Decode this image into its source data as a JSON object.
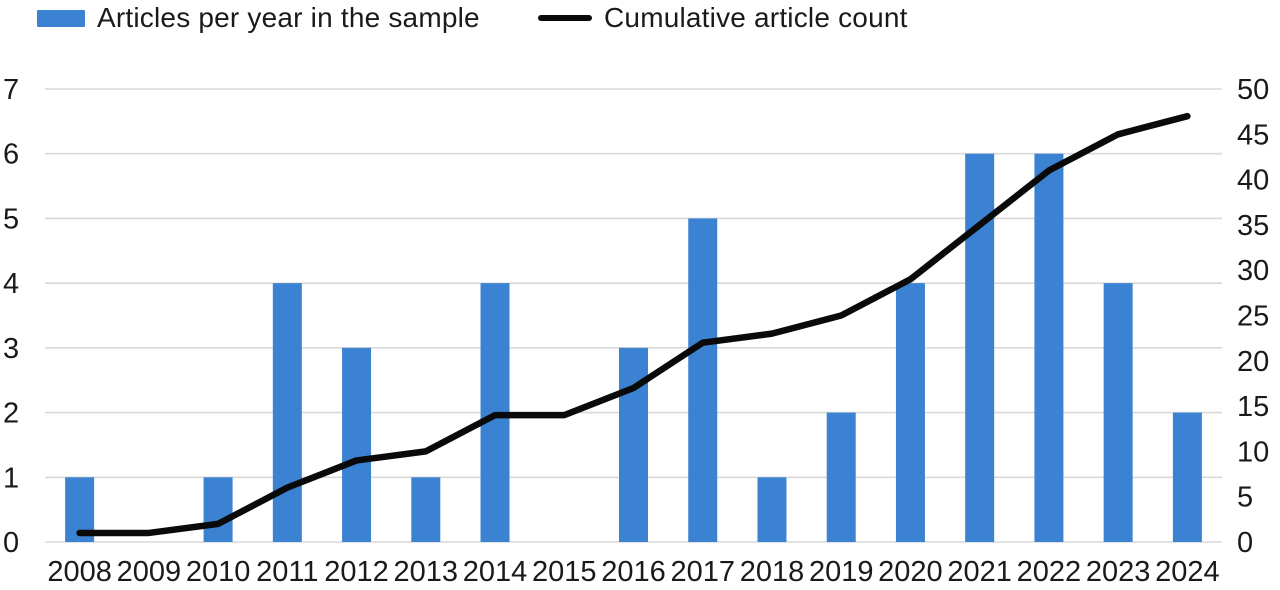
{
  "legend": {
    "items": [
      {
        "label": "Articles per year in the sample",
        "marker": "bar-swatch",
        "color": "#3B82D3"
      },
      {
        "label": "Cumulative article count",
        "marker": "line-swatch",
        "color": "#0a0a0a"
      }
    ]
  },
  "chart_data": {
    "type": "bar",
    "subtype": "bar-and-line-combo",
    "title": "",
    "categories": [
      "2008",
      "2009",
      "2010",
      "2011",
      "2012",
      "2013",
      "2014",
      "2015",
      "2016",
      "2017",
      "2018",
      "2019",
      "2020",
      "2021",
      "2022",
      "2023",
      "2024"
    ],
    "series": [
      {
        "name": "Articles per year in the sample",
        "type": "bar",
        "axis": "left",
        "color": "#3B82D3",
        "values": [
          1,
          0,
          1,
          4,
          3,
          1,
          4,
          0,
          3,
          5,
          1,
          2,
          4,
          6,
          6,
          4,
          2
        ]
      },
      {
        "name": "Cumulative article count",
        "type": "line",
        "axis": "right",
        "color": "#0a0a0a",
        "values": [
          1,
          1,
          2,
          6,
          9,
          10,
          14,
          14,
          17,
          22,
          23,
          25,
          29,
          35,
          41,
          45,
          47
        ]
      }
    ],
    "left_axis": {
      "min": 0,
      "max": 7,
      "step": 1,
      "ticks": [
        "0",
        "1",
        "2",
        "3",
        "4",
        "5",
        "6",
        "7"
      ]
    },
    "right_axis": {
      "min": 0,
      "max": 50,
      "step": 5,
      "ticks": [
        "0",
        "5",
        "10",
        "15",
        "20",
        "25",
        "30",
        "35",
        "40",
        "45",
        "50"
      ]
    },
    "grid": true,
    "gridline_color": "#d9d9d9",
    "text_color": "#1a1a1a",
    "background_color": "#ffffff",
    "legend_position": "top-left",
    "xlabel": "",
    "ylabel_left": "",
    "ylabel_right": ""
  }
}
